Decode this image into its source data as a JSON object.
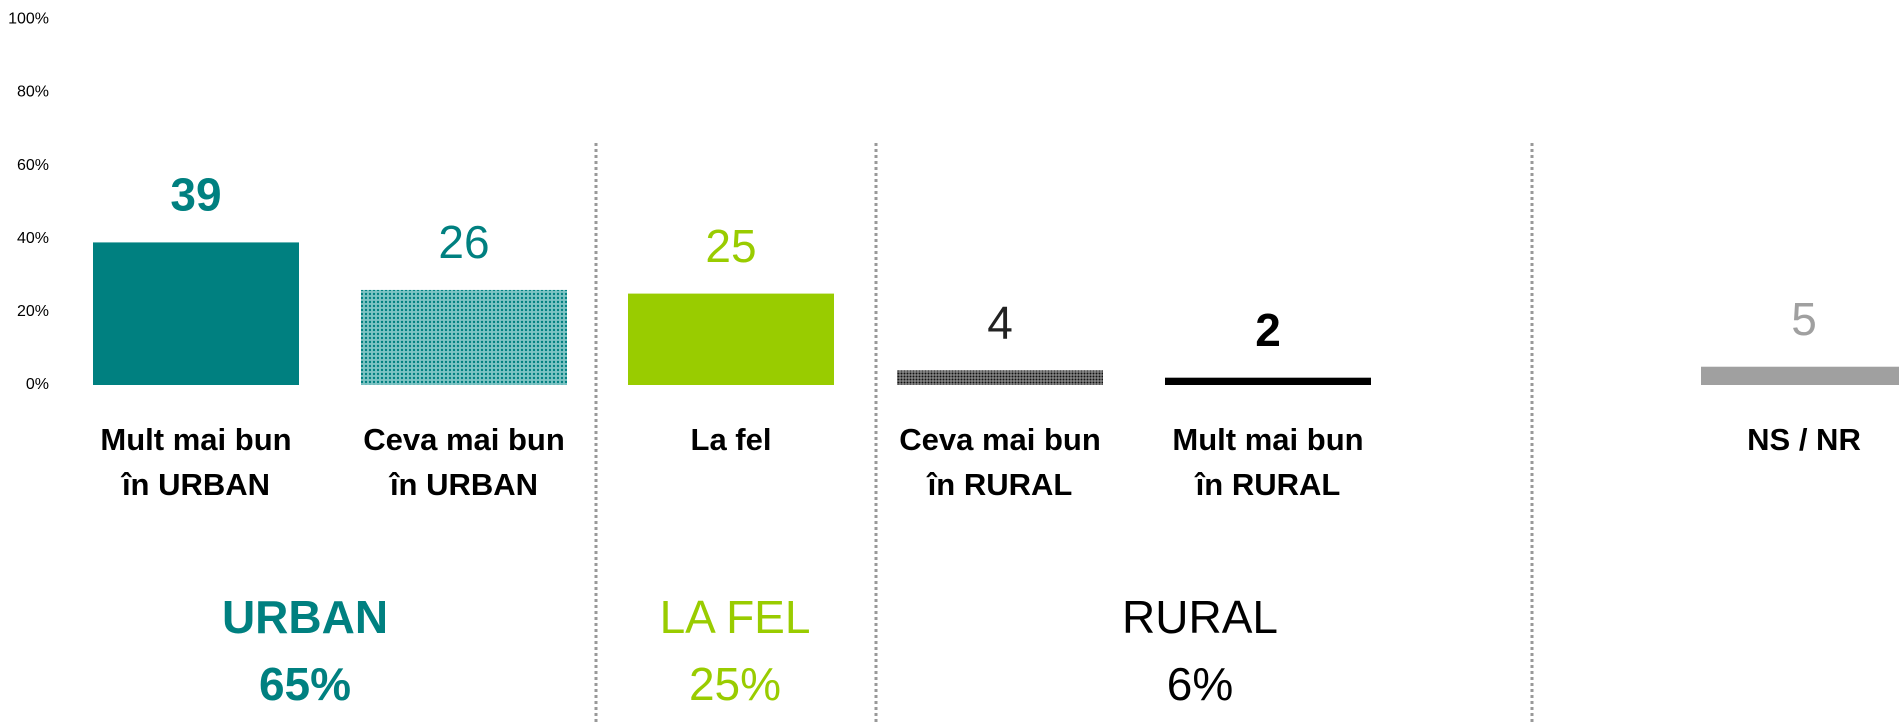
{
  "chart_data": {
    "type": "bar",
    "categories": [
      [
        "Mult mai bun",
        "în URBAN"
      ],
      [
        "Ceva mai bun",
        "în URBAN"
      ],
      [
        "La fel"
      ],
      [
        "Ceva mai bun",
        "în RURAL"
      ],
      [
        "Mult mai bun",
        "în RURAL"
      ],
      [
        "NS / NR"
      ]
    ],
    "values": [
      39,
      26,
      25,
      4,
      2,
      5
    ],
    "colors": [
      "#008080",
      "#008080",
      "#99cc00",
      "#222222",
      "#000000",
      "#a0a0a0"
    ],
    "fills": [
      "solid",
      "dotted",
      "solid",
      "dotted",
      "solid",
      "solid"
    ],
    "label_bold": [
      true,
      false,
      false,
      false,
      true,
      false
    ],
    "ylim": [
      0,
      100
    ],
    "yticks": [
      {
        "value": 0,
        "label": "0%"
      },
      {
        "value": 20,
        "label": "20%"
      },
      {
        "value": 40,
        "label": "40%"
      },
      {
        "value": 60,
        "label": "60%"
      },
      {
        "value": 80,
        "label": "80%"
      },
      {
        "value": 100,
        "label": "100%"
      }
    ],
    "groups": {
      "names": [
        "URBAN",
        "LA FEL",
        "RURAL"
      ],
      "values": [
        65,
        25,
        6
      ],
      "value_labels": [
        "65%",
        "25%",
        "6%"
      ],
      "colors": [
        "#008080",
        "#99cc00",
        "#000000"
      ],
      "bold": [
        true,
        false,
        false
      ]
    }
  }
}
